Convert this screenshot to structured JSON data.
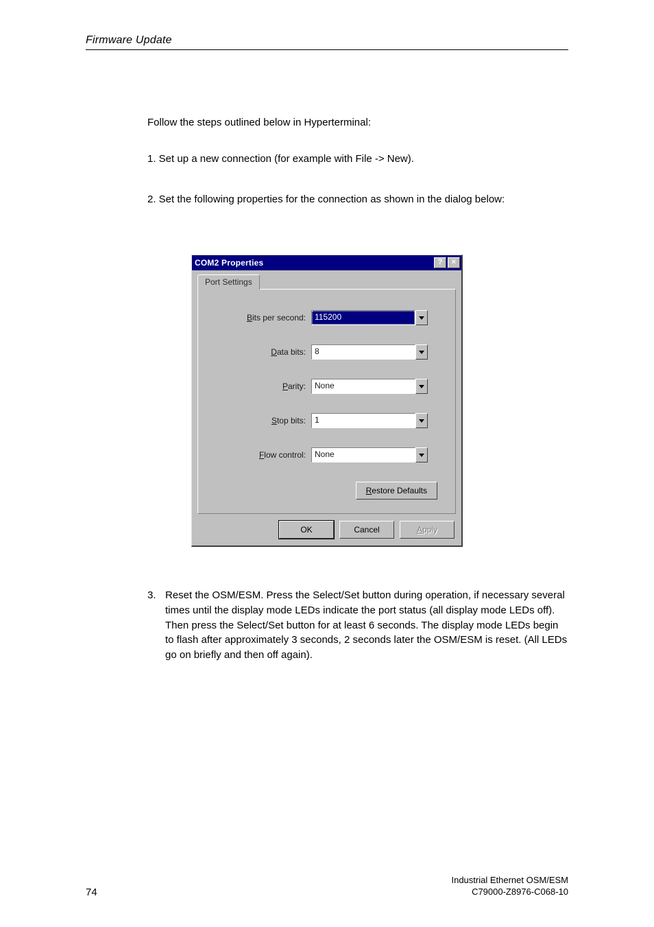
{
  "header": {
    "title": "Firmware Update"
  },
  "intro": "Follow the steps outlined below in Hyperterminal:",
  "step1": "1.    Set up a new connection (for example with File -> New).",
  "step2": "2.    Set the following properties for the connection as shown in the dialog below:",
  "dialog": {
    "title": "COM2 Properties",
    "help_glyph": "?",
    "close_glyph": "×",
    "tab": "Port Settings",
    "fields": {
      "bits_per_second": {
        "label_u": "B",
        "label_rest": "its per second:",
        "value": "115200",
        "selected": true
      },
      "data_bits": {
        "label_u": "D",
        "label_rest": "ata bits:",
        "value": "8"
      },
      "parity": {
        "label_u": "P",
        "label_rest": "arity:",
        "value": "None"
      },
      "stop_bits": {
        "label_u": "S",
        "label_rest": "top bits:",
        "value": "1"
      },
      "flow_control": {
        "label_u": "F",
        "label_rest": "low control:",
        "value": "None"
      }
    },
    "restore_u": "R",
    "restore_rest": "estore Defaults",
    "ok": "OK",
    "cancel": "Cancel",
    "apply_u": "A",
    "apply_rest": "pply"
  },
  "step3_num": "3.",
  "step3_text": "Reset the OSM/ESM. Press the Select/Set button during operation, if necessary several times until the display mode LEDs indicate the port status (all display mode LEDs off). Then press the Select/Set button for at least 6 seconds. The display mode LEDs begin to flash after approximately 3 seconds, 2 seconds later the OSM/ESM is reset. (All LEDs go on briefly and then off again).",
  "footer": {
    "page": "74",
    "right1": "Industrial Ethernet OSM/ESM",
    "right2": "C79000-Z8976-C068-10"
  }
}
